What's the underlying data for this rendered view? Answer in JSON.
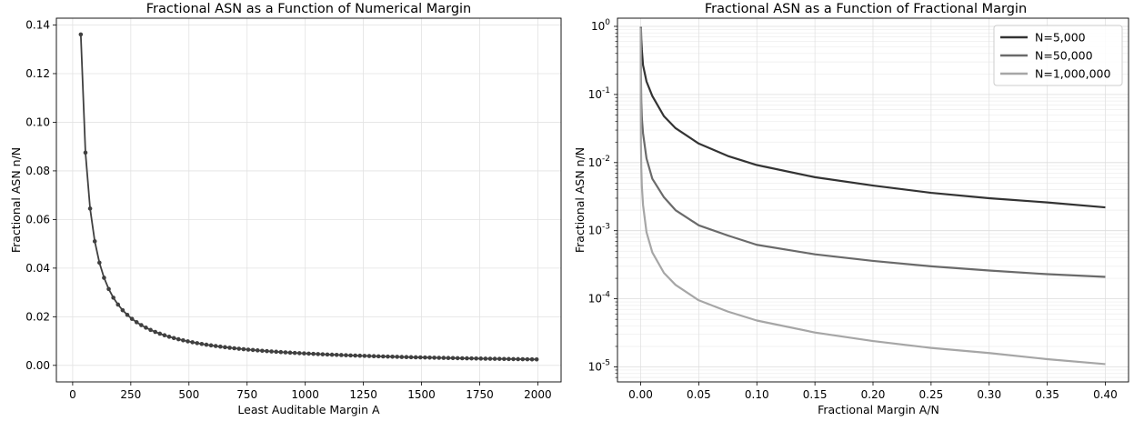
{
  "chart_data": [
    {
      "type": "line",
      "title": "Fractional ASN as a Function of Numerical Margin",
      "xlabel": "Least Auditable Margin A",
      "ylabel": "Fractional ASN n/N",
      "xlim": [
        -70,
        2100
      ],
      "ylim": [
        -0.0068,
        0.1428
      ],
      "xticks": [
        0,
        250,
        500,
        750,
        1000,
        1250,
        1500,
        1750,
        2000
      ],
      "yticks": [
        0.0,
        0.02,
        0.04,
        0.06,
        0.08,
        0.1,
        0.12,
        0.14
      ],
      "ytick_labels": [
        "0.00",
        "0.02",
        "0.04",
        "0.06",
        "0.08",
        "0.10",
        "0.12",
        "0.14"
      ],
      "grid": true,
      "marker": "dot",
      "color": "#404040",
      "formula": "n/N = 4.9 / (A + 1)",
      "x_start": 35,
      "x_step": 20,
      "x_end": 2000
    },
    {
      "type": "line",
      "title": "Fractional ASN as a Function of Fractional Margin",
      "xlabel": "Fractional Margin A/N",
      "ylabel": "Fractional ASN n/N",
      "x_scale": "linear",
      "y_scale": "log",
      "xlim": [
        -0.02,
        0.42
      ],
      "ylim_exp": [
        -5.22,
        0.12
      ],
      "xticks": [
        0.0,
        0.05,
        0.1,
        0.15,
        0.2,
        0.25,
        0.3,
        0.35,
        0.4
      ],
      "xtick_labels": [
        "0.00",
        "0.05",
        "0.10",
        "0.15",
        "0.20",
        "0.25",
        "0.30",
        "0.35",
        "0.40"
      ],
      "ytick_exponents": [
        0,
        -1,
        -2,
        -3,
        -4,
        -5
      ],
      "ytick_base": "10",
      "grid": true,
      "legend_position": "top-right",
      "series": [
        {
          "name": "N=5,000",
          "N": 5000,
          "color": "#333333",
          "x": [
            0.0002,
            0.0005,
            0.001,
            0.002,
            0.005,
            0.01,
            0.02,
            0.03,
            0.05,
            0.075,
            0.1,
            0.15,
            0.2,
            0.25,
            0.3,
            0.35,
            0.4
          ],
          "y": [
            0.98,
            0.65,
            0.45,
            0.27,
            0.155,
            0.095,
            0.048,
            0.032,
            0.019,
            0.0125,
            0.0092,
            0.0061,
            0.0046,
            0.0036,
            0.003,
            0.0026,
            0.0022
          ]
        },
        {
          "name": "N=50,000",
          "N": 50000,
          "color": "#6a6a6a",
          "x": [
            2e-05,
            5e-05,
            0.0001,
            0.0002,
            0.0005,
            0.001,
            0.002,
            0.005,
            0.01,
            0.02,
            0.03,
            0.05,
            0.075,
            0.1,
            0.15,
            0.2,
            0.25,
            0.3,
            0.35,
            0.4
          ],
          "y": [
            0.98,
            0.6,
            0.4,
            0.2,
            0.08,
            0.045,
            0.027,
            0.0115,
            0.0058,
            0.0031,
            0.002,
            0.0012,
            0.00085,
            0.00062,
            0.00045,
            0.00036,
            0.0003,
            0.00026,
            0.00023,
            0.00021
          ]
        },
        {
          "name": "N=1,000,000",
          "N": 1000000,
          "color": "#a6a6a6",
          "x": [
            2e-06,
            1e-05,
            5e-05,
            0.0002,
            0.0005,
            0.001,
            0.002,
            0.005,
            0.01,
            0.02,
            0.03,
            0.05,
            0.075,
            0.1,
            0.15,
            0.2,
            0.25,
            0.3,
            0.35,
            0.4
          ],
          "y": [
            0.95,
            0.4,
            0.08,
            0.02,
            0.0085,
            0.0045,
            0.0024,
            0.00095,
            0.00048,
            0.00024,
            0.00016,
            9.5e-05,
            6.5e-05,
            4.8e-05,
            3.2e-05,
            2.4e-05,
            1.9e-05,
            1.6e-05,
            1.3e-05,
            1.1e-05
          ]
        }
      ]
    }
  ]
}
